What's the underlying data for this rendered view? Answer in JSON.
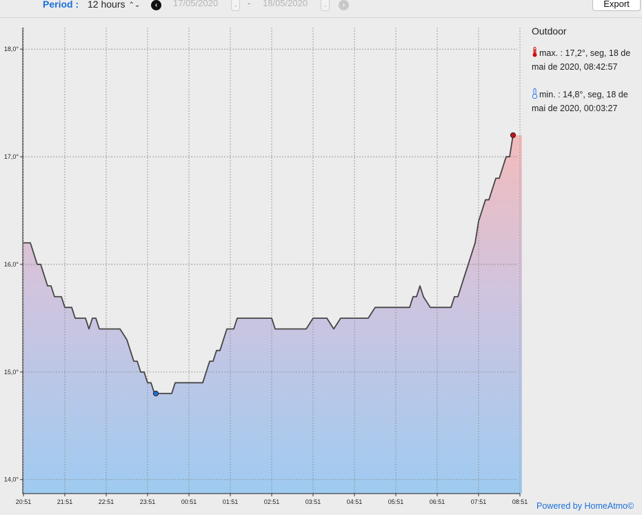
{
  "toolbar": {
    "period_label": "Period :",
    "period_value": "12 hours",
    "date_from": "17/05/2020",
    "date_to": "18/05/2020",
    "separator": "-",
    "export_label": "Export"
  },
  "sidebar": {
    "title": "Outdoor",
    "max_text": "max. : 17,2°, seg, 18 de mai de 2020, 08:42:57",
    "min_text": "min. : 14,8°, seg, 18 de mai de 2020, 00:03:27"
  },
  "footer": {
    "powered": "Powered by HomeAtmo©"
  },
  "colors": {
    "accent": "#1a6fd9",
    "max_marker": "#cc1111",
    "min_marker": "#1f6fd6",
    "line": "#444444"
  },
  "icons": {
    "prev": "chevron-left-circle-icon",
    "next": "chevron-right-circle-icon",
    "max": "thermometer-hot-icon",
    "min": "thermometer-cold-icon"
  },
  "chart_data": {
    "type": "area",
    "x_ticks": [
      "20:51",
      "21:51",
      "22:51",
      "23:51",
      "00:51",
      "01:51",
      "02:51",
      "03:51",
      "04:51",
      "05:51",
      "06:51",
      "07:51",
      "08:51"
    ],
    "y_ticks": [
      "14,0°",
      "15,0°",
      "16,0°",
      "17,0°",
      "18,0°"
    ],
    "ylim": [
      13.87,
      18.2
    ],
    "xlim": [
      0,
      723
    ],
    "grid": true,
    "series": [
      {
        "x": [
          0,
          10,
          20,
          25,
          30,
          35,
          40,
          45,
          50,
          55,
          60,
          65,
          70,
          75,
          80,
          90,
          95,
          100,
          105,
          110,
          115,
          120,
          125,
          130,
          140,
          150,
          160,
          165,
          170,
          175,
          180,
          185,
          190,
          195,
          200,
          205,
          210,
          215,
          220,
          225,
          230,
          235,
          240,
          250,
          260,
          265,
          270,
          275,
          280,
          285,
          290,
          295,
          300,
          305,
          310,
          315,
          320,
          330,
          340,
          350,
          355,
          360,
          365,
          370,
          380,
          390,
          400,
          410,
          420,
          425,
          430,
          440,
          450,
          460,
          470,
          480,
          490,
          500,
          510,
          520,
          530,
          540,
          550,
          560,
          565,
          570,
          575,
          580,
          590,
          600,
          610,
          615,
          620,
          625,
          630,
          635,
          640,
          645,
          650,
          655,
          660,
          665,
          670,
          675,
          680,
          685,
          690,
          695,
          700,
          705,
          710
        ],
        "y": [
          16.2,
          16.2,
          16.0,
          16.0,
          15.9,
          15.8,
          15.8,
          15.7,
          15.7,
          15.7,
          15.6,
          15.6,
          15.6,
          15.5,
          15.5,
          15.5,
          15.4,
          15.5,
          15.5,
          15.4,
          15.4,
          15.4,
          15.4,
          15.4,
          15.4,
          15.3,
          15.1,
          15.1,
          15.0,
          15.0,
          14.9,
          14.9,
          14.8,
          14.8,
          14.8,
          14.8,
          14.8,
          14.8,
          14.9,
          14.9,
          14.9,
          14.9,
          14.9,
          14.9,
          14.9,
          15.0,
          15.1,
          15.1,
          15.2,
          15.2,
          15.3,
          15.4,
          15.4,
          15.4,
          15.5,
          15.5,
          15.5,
          15.5,
          15.5,
          15.5,
          15.5,
          15.5,
          15.4,
          15.4,
          15.4,
          15.4,
          15.4,
          15.4,
          15.5,
          15.5,
          15.5,
          15.5,
          15.4,
          15.5,
          15.5,
          15.5,
          15.5,
          15.5,
          15.6,
          15.6,
          15.6,
          15.6,
          15.6,
          15.6,
          15.7,
          15.7,
          15.8,
          15.7,
          15.6,
          15.6,
          15.6,
          15.6,
          15.6,
          15.7,
          15.7,
          15.8,
          15.9,
          16.0,
          16.1,
          16.2,
          16.4,
          16.5,
          16.6,
          16.6,
          16.7,
          16.8,
          16.8,
          16.9,
          17.0,
          17.0,
          17.2
        ]
      }
    ],
    "min_point": {
      "x": 192,
      "y": 14.8
    },
    "max_point": {
      "x": 710,
      "y": 17.2
    }
  }
}
